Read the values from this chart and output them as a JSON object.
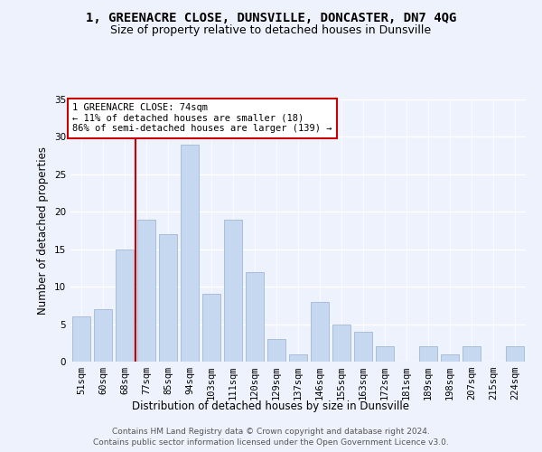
{
  "title": "1, GREENACRE CLOSE, DUNSVILLE, DONCASTER, DN7 4QG",
  "subtitle": "Size of property relative to detached houses in Dunsville",
  "xlabel": "Distribution of detached houses by size in Dunsville",
  "ylabel": "Number of detached properties",
  "categories": [
    "51sqm",
    "60sqm",
    "68sqm",
    "77sqm",
    "85sqm",
    "94sqm",
    "103sqm",
    "111sqm",
    "120sqm",
    "129sqm",
    "137sqm",
    "146sqm",
    "155sqm",
    "163sqm",
    "172sqm",
    "181sqm",
    "189sqm",
    "198sqm",
    "207sqm",
    "215sqm",
    "224sqm"
  ],
  "values": [
    6,
    7,
    15,
    19,
    17,
    29,
    9,
    19,
    12,
    3,
    1,
    8,
    5,
    4,
    2,
    0,
    2,
    1,
    2,
    0,
    2
  ],
  "bar_color": "#c5d8f0",
  "bar_edge_color": "#a0b8d8",
  "vline_x": 2.5,
  "vline_color": "#cc0000",
  "annotation_text": "1 GREENACRE CLOSE: 74sqm\n← 11% of detached houses are smaller (18)\n86% of semi-detached houses are larger (139) →",
  "annotation_box_color": "#ffffff",
  "annotation_box_edge": "#cc0000",
  "ylim": [
    0,
    35
  ],
  "yticks": [
    0,
    5,
    10,
    15,
    20,
    25,
    30,
    35
  ],
  "footer1": "Contains HM Land Registry data © Crown copyright and database right 2024.",
  "footer2": "Contains public sector information licensed under the Open Government Licence v3.0.",
  "bg_color": "#eef2fc",
  "grid_color": "#ffffff",
  "title_fontsize": 10,
  "subtitle_fontsize": 9,
  "label_fontsize": 8.5,
  "tick_fontsize": 7.5,
  "footer_fontsize": 6.5,
  "annot_fontsize": 7.5
}
